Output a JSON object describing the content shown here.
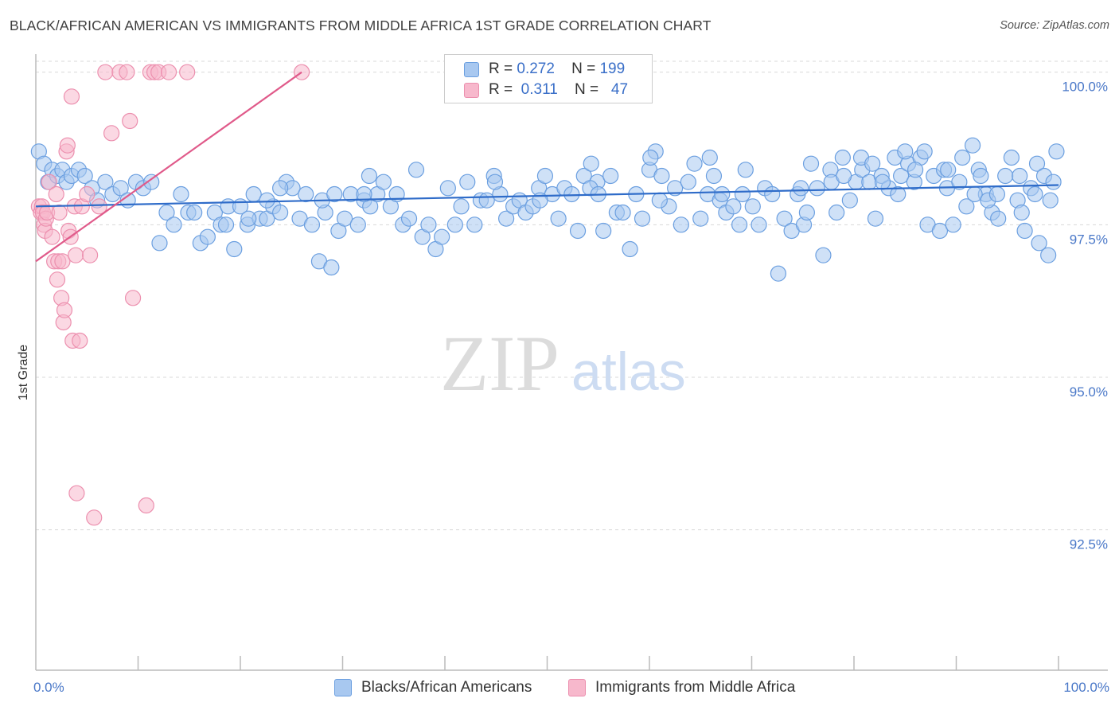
{
  "header": {
    "title": "BLACK/AFRICAN AMERICAN VS IMMIGRANTS FROM MIDDLE AFRICA 1ST GRADE CORRELATION CHART",
    "source": "Source: ZipAtlas.com"
  },
  "watermark": {
    "zip": "ZIP",
    "atlas": "atlas"
  },
  "legend": {
    "r_label": "R =",
    "n_label": "N =",
    "rows": [
      {
        "r": "0.272",
        "n": "199"
      },
      {
        "r": "0.311",
        "n": "47"
      }
    ]
  },
  "colors": {
    "blue_fill": "#a8c8f0",
    "blue_stroke": "#6b9fe0",
    "blue_line": "#2f6cc9",
    "pink_fill": "#f7b8cc",
    "pink_stroke": "#ec8fae",
    "pink_line": "#e05a8a",
    "grid": "#d8d8d8",
    "axis": "#bbbbbb"
  },
  "chart_data": {
    "type": "scatter",
    "title": "BLACK/AFRICAN AMERICAN VS IMMIGRANTS FROM MIDDLE AFRICA 1ST GRADE CORRELATION CHART",
    "xlabel": "",
    "ylabel": "1st Grade",
    "xlim": [
      0,
      100
    ],
    "ylim": [
      90.2,
      100.4
    ],
    "x_tick_labels": [
      "0.0%",
      "100.0%"
    ],
    "y_ticks": [
      100.0,
      97.5,
      95.0,
      92.5
    ],
    "y_tick_labels": [
      "100.0%",
      "97.5%",
      "95.0%",
      "92.5%"
    ],
    "legend_position": "top-center",
    "series": [
      {
        "name": "Blacks/African Americans",
        "r": 0.272,
        "n": 199,
        "trend": {
          "x": [
            0,
            100
          ],
          "y": [
            97.8,
            98.15
          ]
        },
        "points": [
          [
            0.3,
            98.7
          ],
          [
            0.8,
            98.5
          ],
          [
            1.2,
            98.2
          ],
          [
            1.6,
            98.4
          ],
          [
            2.1,
            98.3
          ],
          [
            2.6,
            98.4
          ],
          [
            3.0,
            98.2
          ],
          [
            3.5,
            98.3
          ],
          [
            4.2,
            98.4
          ],
          [
            4.8,
            98.3
          ],
          [
            5.5,
            98.1
          ],
          [
            6.0,
            97.9
          ],
          [
            6.8,
            98.2
          ],
          [
            7.5,
            98.0
          ],
          [
            8.3,
            98.1
          ],
          [
            9.0,
            97.9
          ],
          [
            9.8,
            98.2
          ],
          [
            10.5,
            98.1
          ],
          [
            11.3,
            98.2
          ],
          [
            12.1,
            97.2
          ],
          [
            12.8,
            97.7
          ],
          [
            13.5,
            97.5
          ],
          [
            14.2,
            98.0
          ],
          [
            14.9,
            97.7
          ],
          [
            15.5,
            97.7
          ],
          [
            16.1,
            97.2
          ],
          [
            16.8,
            97.3
          ],
          [
            17.5,
            97.7
          ],
          [
            18.1,
            97.5
          ],
          [
            18.8,
            97.8
          ],
          [
            19.4,
            97.1
          ],
          [
            20.0,
            97.8
          ],
          [
            20.7,
            97.5
          ],
          [
            21.3,
            98.0
          ],
          [
            21.9,
            97.6
          ],
          [
            22.6,
            97.6
          ],
          [
            23.2,
            97.8
          ],
          [
            23.9,
            97.7
          ],
          [
            24.5,
            98.2
          ],
          [
            25.1,
            98.1
          ],
          [
            25.8,
            97.6
          ],
          [
            26.4,
            98.0
          ],
          [
            27.0,
            97.5
          ],
          [
            27.7,
            96.9
          ],
          [
            28.3,
            97.7
          ],
          [
            28.9,
            96.8
          ],
          [
            29.6,
            97.4
          ],
          [
            30.2,
            97.6
          ],
          [
            30.8,
            98.0
          ],
          [
            31.5,
            97.5
          ],
          [
            32.1,
            97.9
          ],
          [
            32.7,
            97.8
          ],
          [
            33.4,
            98.0
          ],
          [
            34.0,
            98.2
          ],
          [
            34.7,
            97.8
          ],
          [
            35.3,
            98.0
          ],
          [
            35.9,
            97.5
          ],
          [
            36.5,
            97.6
          ],
          [
            37.2,
            98.4
          ],
          [
            37.8,
            97.3
          ],
          [
            38.4,
            97.5
          ],
          [
            39.1,
            97.1
          ],
          [
            39.7,
            97.3
          ],
          [
            40.3,
            98.1
          ],
          [
            41.0,
            97.5
          ],
          [
            41.6,
            97.8
          ],
          [
            42.2,
            98.2
          ],
          [
            42.9,
            97.5
          ],
          [
            43.5,
            97.9
          ],
          [
            44.1,
            97.9
          ],
          [
            44.8,
            98.3
          ],
          [
            45.4,
            98.0
          ],
          [
            46.0,
            97.6
          ],
          [
            46.7,
            97.8
          ],
          [
            47.3,
            97.9
          ],
          [
            47.9,
            97.7
          ],
          [
            48.6,
            97.8
          ],
          [
            49.2,
            98.1
          ],
          [
            49.8,
            98.3
          ],
          [
            50.5,
            98.0
          ],
          [
            51.1,
            97.6
          ],
          [
            51.7,
            98.1
          ],
          [
            52.4,
            98.0
          ],
          [
            53.0,
            97.4
          ],
          [
            53.6,
            98.3
          ],
          [
            54.3,
            98.5
          ],
          [
            54.9,
            98.2
          ],
          [
            55.5,
            97.4
          ],
          [
            56.2,
            98.3
          ],
          [
            56.8,
            97.7
          ],
          [
            57.4,
            97.7
          ],
          [
            58.1,
            97.1
          ],
          [
            58.7,
            98.0
          ],
          [
            59.3,
            97.6
          ],
          [
            60.0,
            98.4
          ],
          [
            60.6,
            98.7
          ],
          [
            61.2,
            98.3
          ],
          [
            61.9,
            97.8
          ],
          [
            62.5,
            98.1
          ],
          [
            63.1,
            97.5
          ],
          [
            63.8,
            98.2
          ],
          [
            64.4,
            98.5
          ],
          [
            65.0,
            97.6
          ],
          [
            65.7,
            98.0
          ],
          [
            66.3,
            98.3
          ],
          [
            66.9,
            97.9
          ],
          [
            67.5,
            97.7
          ],
          [
            68.2,
            97.8
          ],
          [
            68.8,
            97.5
          ],
          [
            69.4,
            98.4
          ],
          [
            70.1,
            97.8
          ],
          [
            70.7,
            97.5
          ],
          [
            71.3,
            98.1
          ],
          [
            72.0,
            98.0
          ],
          [
            72.6,
            96.7
          ],
          [
            73.2,
            97.6
          ],
          [
            73.9,
            97.4
          ],
          [
            74.5,
            98.0
          ],
          [
            75.1,
            97.5
          ],
          [
            75.8,
            98.5
          ],
          [
            76.4,
            98.1
          ],
          [
            77.0,
            97.0
          ],
          [
            77.7,
            98.4
          ],
          [
            78.3,
            97.7
          ],
          [
            78.9,
            98.6
          ],
          [
            79.6,
            97.9
          ],
          [
            80.2,
            98.2
          ],
          [
            80.8,
            98.4
          ],
          [
            81.5,
            98.2
          ],
          [
            82.1,
            97.6
          ],
          [
            82.7,
            98.3
          ],
          [
            83.4,
            98.1
          ],
          [
            84.0,
            98.6
          ],
          [
            84.6,
            98.3
          ],
          [
            85.3,
            98.5
          ],
          [
            85.9,
            98.2
          ],
          [
            86.5,
            98.6
          ],
          [
            87.2,
            97.5
          ],
          [
            87.8,
            98.3
          ],
          [
            88.4,
            97.4
          ],
          [
            89.1,
            98.1
          ],
          [
            89.7,
            97.5
          ],
          [
            90.3,
            98.2
          ],
          [
            91.0,
            97.8
          ],
          [
            91.6,
            98.8
          ],
          [
            92.2,
            98.4
          ],
          [
            92.9,
            98.0
          ],
          [
            93.5,
            97.7
          ],
          [
            94.1,
            97.6
          ],
          [
            94.8,
            98.3
          ],
          [
            95.4,
            98.6
          ],
          [
            96.0,
            97.9
          ],
          [
            96.7,
            97.4
          ],
          [
            97.3,
            98.1
          ],
          [
            97.9,
            98.5
          ],
          [
            98.6,
            98.3
          ],
          [
            99.2,
            97.9
          ],
          [
            99.8,
            98.7
          ],
          [
            23.9,
            98.1
          ],
          [
            22.6,
            97.9
          ],
          [
            32.1,
            98.0
          ],
          [
            32.6,
            98.3
          ],
          [
            44.9,
            98.2
          ],
          [
            49.3,
            97.9
          ],
          [
            54.2,
            98.1
          ],
          [
            55.0,
            98.0
          ],
          [
            60.1,
            98.6
          ],
          [
            61.0,
            97.9
          ],
          [
            65.9,
            98.6
          ],
          [
            67.1,
            98.0
          ],
          [
            69.1,
            98.0
          ],
          [
            74.8,
            98.1
          ],
          [
            75.4,
            97.7
          ],
          [
            77.8,
            98.2
          ],
          [
            79.0,
            98.3
          ],
          [
            80.7,
            98.6
          ],
          [
            81.8,
            98.5
          ],
          [
            82.8,
            98.2
          ],
          [
            84.3,
            98.0
          ],
          [
            85.0,
            98.7
          ],
          [
            86.0,
            98.4
          ],
          [
            86.9,
            98.7
          ],
          [
            88.8,
            98.4
          ],
          [
            89.2,
            98.4
          ],
          [
            90.6,
            98.6
          ],
          [
            91.8,
            98.0
          ],
          [
            92.4,
            98.3
          ],
          [
            93.1,
            97.9
          ],
          [
            94.0,
            98.0
          ],
          [
            96.2,
            98.3
          ],
          [
            96.4,
            97.7
          ],
          [
            97.7,
            98.0
          ],
          [
            98.1,
            97.2
          ],
          [
            99.0,
            97.0
          ],
          [
            99.5,
            98.2
          ],
          [
            18.6,
            97.5
          ],
          [
            20.8,
            97.6
          ],
          [
            28.0,
            97.9
          ],
          [
            29.2,
            98.0
          ]
        ]
      },
      {
        "name": "Immigrants from Middle Africa",
        "r": 0.311,
        "n": 47,
        "trend": {
          "x": [
            0,
            26
          ],
          "y": [
            96.9,
            100.0
          ]
        },
        "points": [
          [
            0.3,
            97.8
          ],
          [
            0.5,
            97.7
          ],
          [
            0.6,
            97.8
          ],
          [
            0.7,
            97.7
          ],
          [
            0.8,
            97.5
          ],
          [
            0.9,
            97.4
          ],
          [
            1.0,
            97.6
          ],
          [
            1.1,
            97.7
          ],
          [
            1.3,
            98.2
          ],
          [
            1.6,
            97.3
          ],
          [
            1.8,
            96.9
          ],
          [
            2.0,
            98.0
          ],
          [
            2.1,
            96.6
          ],
          [
            2.2,
            96.9
          ],
          [
            2.3,
            97.7
          ],
          [
            2.5,
            96.3
          ],
          [
            2.6,
            96.9
          ],
          [
            2.7,
            95.9
          ],
          [
            2.8,
            96.1
          ],
          [
            3.0,
            98.7
          ],
          [
            3.1,
            98.8
          ],
          [
            3.2,
            97.4
          ],
          [
            3.4,
            97.3
          ],
          [
            3.5,
            99.6
          ],
          [
            3.6,
            95.6
          ],
          [
            3.8,
            97.8
          ],
          [
            3.9,
            97.0
          ],
          [
            4.0,
            93.1
          ],
          [
            4.3,
            95.6
          ],
          [
            4.5,
            97.8
          ],
          [
            5.0,
            98.0
          ],
          [
            5.3,
            97.0
          ],
          [
            5.7,
            92.7
          ],
          [
            6.2,
            97.8
          ],
          [
            6.8,
            100.0
          ],
          [
            7.4,
            99.0
          ],
          [
            8.2,
            100.0
          ],
          [
            8.9,
            100.0
          ],
          [
            9.2,
            99.2
          ],
          [
            9.5,
            96.3
          ],
          [
            10.8,
            92.9
          ],
          [
            11.2,
            100.0
          ],
          [
            11.6,
            100.0
          ],
          [
            12.0,
            100.0
          ],
          [
            13.0,
            100.0
          ],
          [
            14.8,
            100.0
          ],
          [
            26.0,
            100.0
          ]
        ]
      }
    ]
  }
}
